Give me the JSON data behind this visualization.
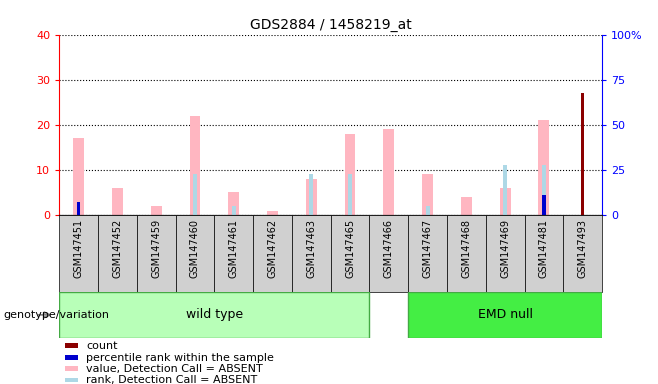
{
  "title": "GDS2884 / 1458219_at",
  "samples": [
    "GSM147451",
    "GSM147452",
    "GSM147459",
    "GSM147460",
    "GSM147461",
    "GSM147462",
    "GSM147463",
    "GSM147465",
    "GSM147466",
    "GSM147467",
    "GSM147468",
    "GSM147469",
    "GSM147481",
    "GSM147493"
  ],
  "wild_type_indices": [
    0,
    7
  ],
  "emd_null_indices": [
    8,
    13
  ],
  "left_ylim": [
    0,
    40
  ],
  "right_ylim": [
    0,
    100
  ],
  "left_yticks": [
    0,
    10,
    20,
    30,
    40
  ],
  "right_yticks": [
    0,
    25,
    50,
    75,
    100
  ],
  "right_yticklabels": [
    "0",
    "25",
    "50",
    "75",
    "100%"
  ],
  "count_values": [
    0,
    0,
    0,
    0,
    0,
    0,
    0,
    0,
    0,
    0,
    0,
    0,
    0,
    27
  ],
  "rank_values": [
    7,
    0,
    0,
    0,
    0,
    0,
    0,
    0,
    0,
    0,
    0,
    0,
    11,
    0
  ],
  "value_absent": [
    17,
    6,
    2,
    22,
    5,
    1,
    8,
    18,
    19,
    9,
    4,
    6,
    21,
    0
  ],
  "rank_absent": [
    0,
    0,
    0,
    9,
    2,
    0,
    9,
    9,
    0,
    2,
    0,
    11,
    11,
    0
  ],
  "count_color": "#8B0000",
  "rank_color": "#0000CD",
  "value_absent_color": "#FFB6C1",
  "rank_absent_color": "#ADD8E6",
  "wild_type_bg": "#B8FFB8",
  "emd_null_bg": "#44EE44",
  "bar_bg_color": "#D0D0D0",
  "group_label": "genotype/variation",
  "wild_type_label": "wild type",
  "emd_null_label": "EMD null",
  "legend_items": [
    "count",
    "percentile rank within the sample",
    "value, Detection Call = ABSENT",
    "rank, Detection Call = ABSENT"
  ],
  "legend_colors": [
    "#8B0000",
    "#0000CD",
    "#FFB6C1",
    "#ADD8E6"
  ]
}
